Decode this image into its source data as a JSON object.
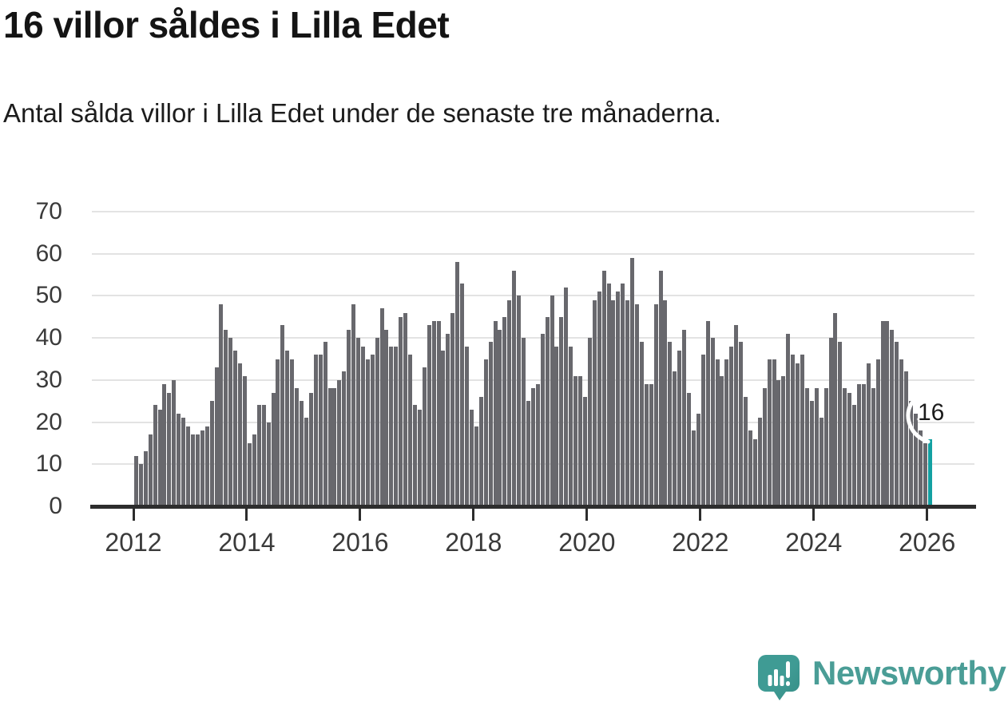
{
  "title": "16 villor såldes i Lilla Edet",
  "subtitle": "Antal sålda villor i Lilla Edet under de senaste tre månaderna.",
  "annotation": {
    "label": "16"
  },
  "logo": {
    "text": "Newsworthy"
  },
  "colors": {
    "bar": "#68686d",
    "highlight": "#13a1a2",
    "axis": "#2d2d2d",
    "grid": "#e3e3e3",
    "tick_label": "#3a3a3a",
    "title_text": "#141414",
    "logo_teal": "#4a9d96",
    "logo_bubble": "#3f9b94",
    "logo_bubble_shade": "#368d86",
    "annotation_halo": "#ffffff"
  },
  "chart_data": {
    "type": "bar",
    "title": "16 villor såldes i Lilla Edet",
    "subtitle": "Antal sålda villor i Lilla Edet under de senaste tre månaderna.",
    "x_start": "2012-01",
    "x_end": "2026-01",
    "frequency": "monthly",
    "unit": "antal sålda villor (rullande tre månader)",
    "values": [
      12,
      10,
      13,
      17,
      24,
      23,
      29,
      27,
      30,
      22,
      21,
      19,
      17,
      17,
      18,
      19,
      25,
      33,
      48,
      42,
      40,
      37,
      34,
      31,
      15,
      17,
      24,
      24,
      20,
      27,
      35,
      43,
      37,
      35,
      28,
      25,
      21,
      27,
      36,
      36,
      39,
      28,
      28,
      30,
      32,
      42,
      48,
      40,
      38,
      35,
      36,
      40,
      47,
      42,
      38,
      38,
      45,
      46,
      36,
      24,
      23,
      33,
      43,
      44,
      44,
      37,
      41,
      46,
      58,
      53,
      38,
      23,
      19,
      26,
      35,
      39,
      44,
      42,
      45,
      49,
      56,
      50,
      40,
      25,
      28,
      29,
      41,
      45,
      50,
      38,
      45,
      52,
      38,
      31,
      31,
      26,
      40,
      49,
      51,
      56,
      53,
      49,
      51,
      53,
      49,
      59,
      48,
      39,
      29,
      29,
      48,
      56,
      49,
      39,
      32,
      37,
      42,
      27,
      18,
      22,
      36,
      44,
      40,
      35,
      31,
      35,
      38,
      43,
      39,
      26,
      18,
      16,
      21,
      28,
      35,
      35,
      30,
      31,
      41,
      36,
      34,
      36,
      28,
      25,
      28,
      21,
      28,
      40,
      46,
      39,
      28,
      27,
      24,
      29,
      29,
      34,
      28,
      35,
      44,
      44,
      42,
      39,
      35,
      32,
      25,
      22,
      18,
      15,
      16
    ],
    "highlight_last": true,
    "highlight_value": 16,
    "annotation_label": "16",
    "y_ticks": [
      0,
      10,
      20,
      30,
      40,
      50,
      60,
      70
    ],
    "y_tick_labels": [
      "0",
      "10",
      "20",
      "30",
      "40",
      "50",
      "60",
      "70"
    ],
    "x_tick_labels": [
      "2012",
      "2014",
      "2016",
      "2018",
      "2020",
      "2022",
      "2024",
      "2026"
    ],
    "ylim": [
      0,
      70
    ],
    "grid": "horizontal",
    "legend": "none"
  }
}
